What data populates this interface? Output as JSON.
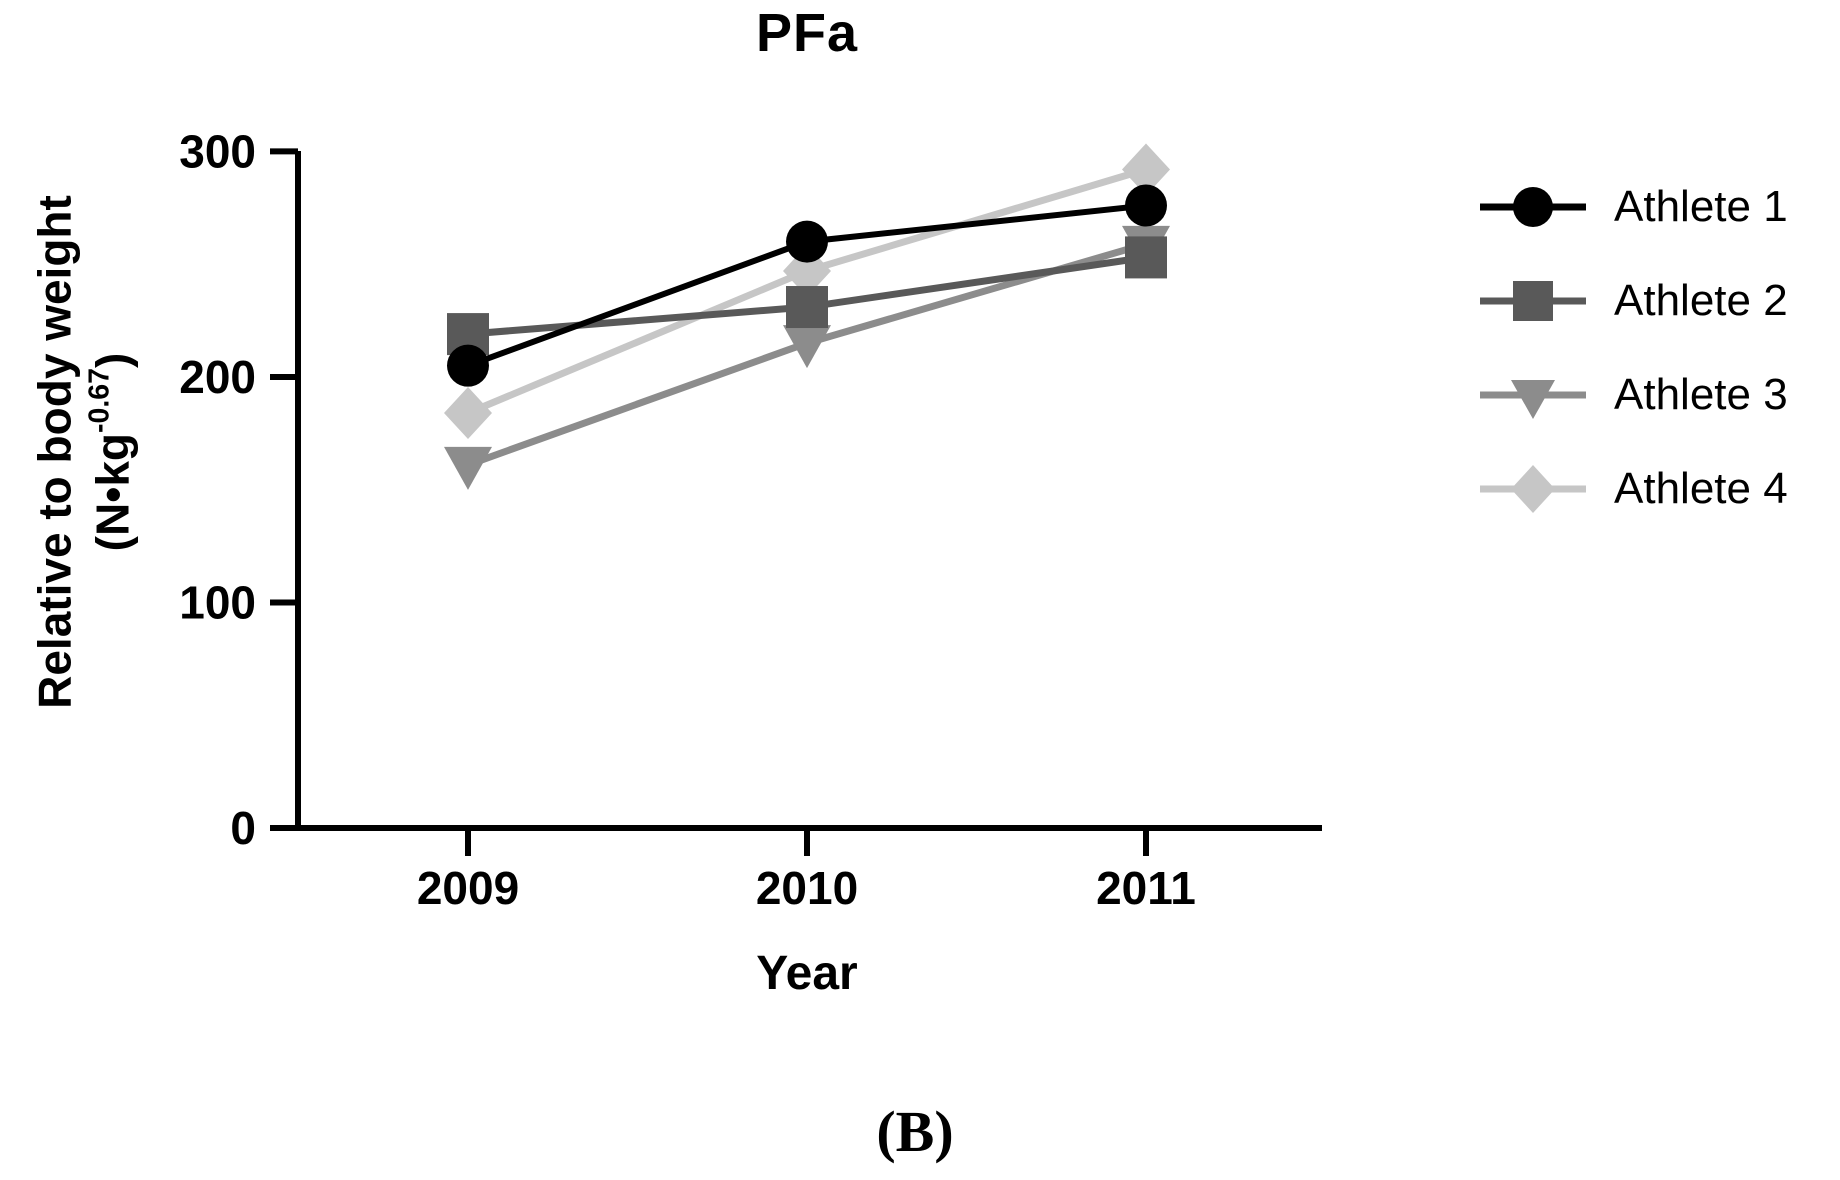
{
  "labels": {
    "ylabel_line1": "Relative to body weight",
    "ylabel_unit_open": "(N•kg",
    "ylabel_unit_exponent": "-0.67",
    "ylabel_unit_close": ")",
    "caption": "(B)"
  },
  "chart_data": {
    "type": "line",
    "title": "PFa",
    "xlabel": "Year",
    "ylabel": "Relative to body weight (N•kg^-0.67)",
    "categories": [
      "2009",
      "2010",
      "2011"
    ],
    "yticks": [
      0,
      100,
      200,
      300
    ],
    "ylim": [
      0,
      300
    ],
    "grid": false,
    "legend_position": "right",
    "series": [
      {
        "name": "Athlete 1",
        "marker": "circle",
        "color": "#000000",
        "values": [
          205,
          260,
          276
        ]
      },
      {
        "name": "Athlete 2",
        "marker": "square",
        "color": "#595959",
        "values": [
          219,
          231,
          253
        ]
      },
      {
        "name": "Athlete 3",
        "marker": "triangle-down",
        "color": "#8C8C8C",
        "values": [
          161,
          215,
          259
        ]
      },
      {
        "name": "Athlete 4",
        "marker": "diamond",
        "color": "#C6C6C6",
        "values": [
          184,
          247,
          292
        ]
      }
    ]
  }
}
